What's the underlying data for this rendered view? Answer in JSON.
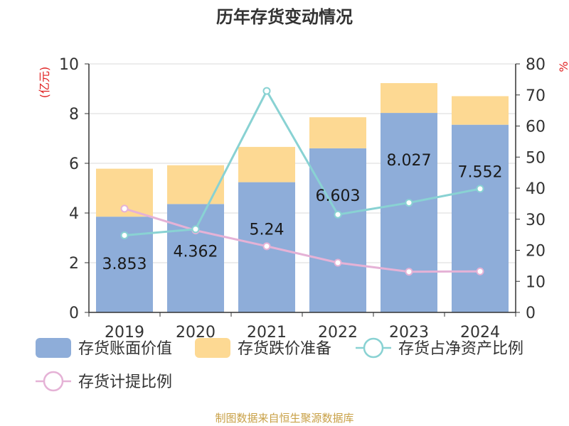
{
  "title": "历年存货变动情况",
  "source": "制图数据来自恒生聚源数据库",
  "colors": {
    "book": "#8eadd9",
    "reserve": "#fdd993",
    "net_ratio": "#89d2d3",
    "provision_ratio": "#e5b2d6",
    "unit": "#e02020",
    "axis": "#333333",
    "grid": "#d9d9d9"
  },
  "chart_data": {
    "type": "bar",
    "categories": [
      "2019",
      "2020",
      "2021",
      "2022",
      "2023",
      "2024"
    ],
    "left_axis": {
      "unit_label": "(亿元)",
      "ylim": [
        0,
        10
      ],
      "ticks": [
        "0",
        "2",
        "4",
        "6",
        "8",
        "10"
      ]
    },
    "right_axis": {
      "unit_label": "%",
      "ylim": [
        0,
        80
      ],
      "ticks": [
        "0",
        "10",
        "20",
        "30",
        "40",
        "50",
        "60",
        "70",
        "80"
      ]
    },
    "grid": true,
    "legend_position": "bottom",
    "series": [
      {
        "name": "存货账面价值",
        "kind": "bar",
        "stack": true,
        "axis": "left",
        "values": [
          3.853,
          4.362,
          5.24,
          6.603,
          8.027,
          7.552
        ],
        "data_labels": [
          "3.853",
          "4.362",
          "5.24",
          "6.603",
          "8.027",
          "7.552"
        ]
      },
      {
        "name": "存货跌价准备",
        "kind": "bar",
        "stack": true,
        "axis": "left",
        "values": [
          1.93,
          1.56,
          1.42,
          1.25,
          1.2,
          1.15
        ]
      },
      {
        "name": "存货占净资产比例",
        "kind": "line",
        "axis": "right",
        "values": [
          24.8,
          26.8,
          71.3,
          31.5,
          35.3,
          39.8
        ]
      },
      {
        "name": "存货计提比例",
        "kind": "line",
        "axis": "right",
        "values": [
          33.4,
          26.4,
          21.3,
          16.0,
          13.1,
          13.2
        ]
      }
    ]
  }
}
